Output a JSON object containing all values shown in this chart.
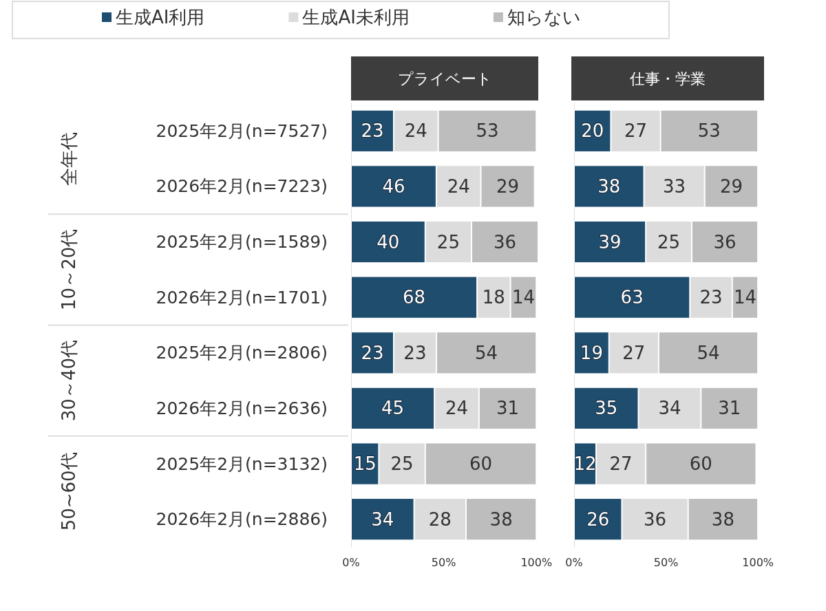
{
  "chart_data": [
    {
      "type": "bar",
      "orientation": "horizontal",
      "stacked": true,
      "title": "プライベート",
      "legend": "top",
      "data_labels": true,
      "categories": [
        "2025年2月(n=7527)",
        "2026年2月(n=7223)",
        "2025年2月(n=1589)",
        "2026年2月(n=1701)",
        "2025年2月(n=2806)",
        "2026年2月(n=2636)",
        "2025年2月(n=3132)",
        "2026年2月(n=2886)"
      ],
      "xlim": [
        0,
        101
      ],
      "xticks": [
        {
          "value": 0,
          "label": "0%"
        },
        {
          "value": 50,
          "label": "50%"
        },
        {
          "value": 100,
          "label": "100%"
        }
      ],
      "annotations": [
        "全年代",
        "10～20代",
        "30～40代",
        "50~60代"
      ],
      "series": [
        {
          "name": "生成AI利用",
          "color": "#1f4d6e",
          "values": [
            23,
            46,
            40,
            68,
            23,
            45,
            15,
            34
          ]
        },
        {
          "name": "生成AI未利用",
          "color": "#dcdcdc",
          "values": [
            24,
            24,
            25,
            18,
            23,
            24,
            25,
            28
          ]
        },
        {
          "name": "知らない",
          "color": "#bdbdbd",
          "values": [
            53,
            29,
            36,
            14,
            54,
            31,
            60,
            38
          ]
        }
      ]
    },
    {
      "type": "bar",
      "orientation": "horizontal",
      "stacked": true,
      "title": "仕事・学業",
      "data_labels": true,
      "categories": [
        null,
        null,
        null,
        null,
        null,
        null,
        null,
        null
      ],
      "xlim": [
        0,
        101
      ],
      "xticks": [
        {
          "value": 0,
          "label": "0%"
        },
        {
          "value": 50,
          "label": "50%"
        },
        {
          "value": 100,
          "label": "100%"
        }
      ],
      "series": [
        {
          "color": "#1f4d6e",
          "values": [
            20,
            38,
            39,
            63,
            19,
            35,
            12,
            26
          ]
        },
        {
          "color": "#dcdcdc",
          "values": [
            27,
            33,
            25,
            23,
            27,
            34,
            27,
            36
          ]
        },
        {
          "color": "#bdbdbd",
          "values": [
            53,
            29,
            36,
            14,
            54,
            31,
            60,
            38
          ]
        }
      ]
    }
  ]
}
